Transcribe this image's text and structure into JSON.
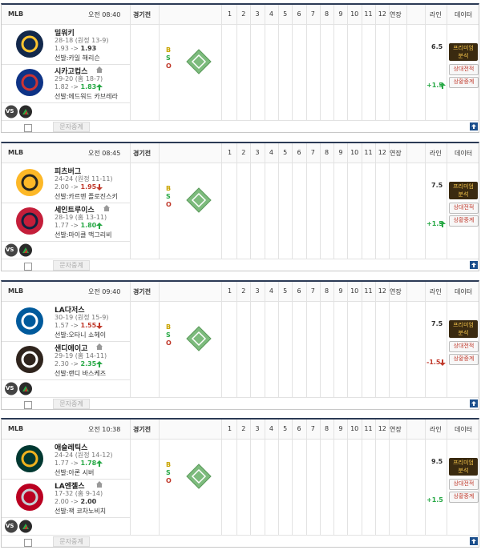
{
  "header": {
    "innings": [
      "1",
      "2",
      "3",
      "4",
      "5",
      "6",
      "7",
      "8",
      "9",
      "10",
      "11",
      "12"
    ],
    "extra": "연장",
    "line": "라인",
    "data": "데이터"
  },
  "count_labels": [
    "B",
    "S",
    "O"
  ],
  "vs_label": "VS",
  "buttons": {
    "premium": [
      "프리미엄",
      "분석"
    ],
    "record": "상대전적",
    "live": "상황중계",
    "text_live": "문자중계"
  },
  "games": [
    {
      "league": "MLB",
      "time": "오전 08:40",
      "status": "경기전",
      "teams": [
        {
          "name": "밀워키",
          "record": "28-18 (원정 13-9)",
          "odds": {
            "open": "1.93",
            "sep": "->",
            "now": "1.93"
          },
          "pitcher": "선발:카일 해리슨",
          "logo": "#12284b",
          "accent": "#ffc52f"
        },
        {
          "name": "시카고컵스",
          "record": "29-20 (홈 18-7)",
          "odds": {
            "open": "1.82",
            "sep": "->",
            "now": "1.83",
            "trend": "up"
          },
          "pitcher": "선발:에드워드 카브레라",
          "logo": "#0e3386",
          "accent": "#cc3433",
          "home": true
        }
      ],
      "line": {
        "total": "6.5",
        "handicap": "+1.5",
        "handicap_trend": "up"
      }
    },
    {
      "league": "MLB",
      "time": "오전 08:45",
      "status": "경기전",
      "teams": [
        {
          "name": "피츠버그",
          "record": "24-24 (원정 11-11)",
          "odds": {
            "open": "2.00",
            "sep": "->",
            "now": "1.95",
            "trend": "down"
          },
          "pitcher": "선발:카르멘 플로진스키",
          "logo": "#fdb827",
          "accent": "#27251f"
        },
        {
          "name": "세인트루이스",
          "record": "28-19 (홈 13-11)",
          "odds": {
            "open": "1.77",
            "sep": "->",
            "now": "1.80",
            "trend": "up"
          },
          "pitcher": "선발:마이클 맥그리비",
          "logo": "#c41e3a",
          "accent": "#0c2340",
          "home": true
        }
      ],
      "line": {
        "total": "7.5",
        "handicap": "+1.5",
        "handicap_trend": "up"
      }
    },
    {
      "league": "MLB",
      "time": "오전 09:40",
      "status": "경기전",
      "teams": [
        {
          "name": "LA다저스",
          "record": "30-19 (원정 15-9)",
          "odds": {
            "open": "1.57",
            "sep": "->",
            "now": "1.55",
            "trend": "down"
          },
          "pitcher": "선발:오타니 쇼헤이",
          "logo": "#005a9c",
          "accent": "#ffffff"
        },
        {
          "name": "샌디에이고",
          "record": "29-19 (홈 14-11)",
          "odds": {
            "open": "2.30",
            "sep": "->",
            "now": "2.35",
            "trend": "up"
          },
          "pitcher": "선발:랜디 바스케즈",
          "logo": "#2f241d",
          "accent": "#ffffff",
          "home": true
        }
      ],
      "line": {
        "total": "7.5",
        "handicap": "-1.5",
        "handicap_trend": "down"
      }
    },
    {
      "league": "MLB",
      "time": "오전 10:38",
      "status": "경기전",
      "teams": [
        {
          "name": "애슬레틱스",
          "record": "24-24 (원정 14-12)",
          "odds": {
            "open": "1.77",
            "sep": "->",
            "now": "1.78",
            "trend": "up"
          },
          "pitcher": "선발:아론 시버",
          "logo": "#003831",
          "accent": "#efb21e"
        },
        {
          "name": "LA엔젤스",
          "record": "17-32 (홈 9-14)",
          "odds": {
            "open": "2.00",
            "sep": "->",
            "now": "2.00"
          },
          "pitcher": "선발:잭 코차노비치",
          "logo": "#ba0021",
          "accent": "#c4ced4",
          "home": true
        }
      ],
      "line": {
        "total": "9.5",
        "handicap": "+1.5"
      }
    }
  ]
}
